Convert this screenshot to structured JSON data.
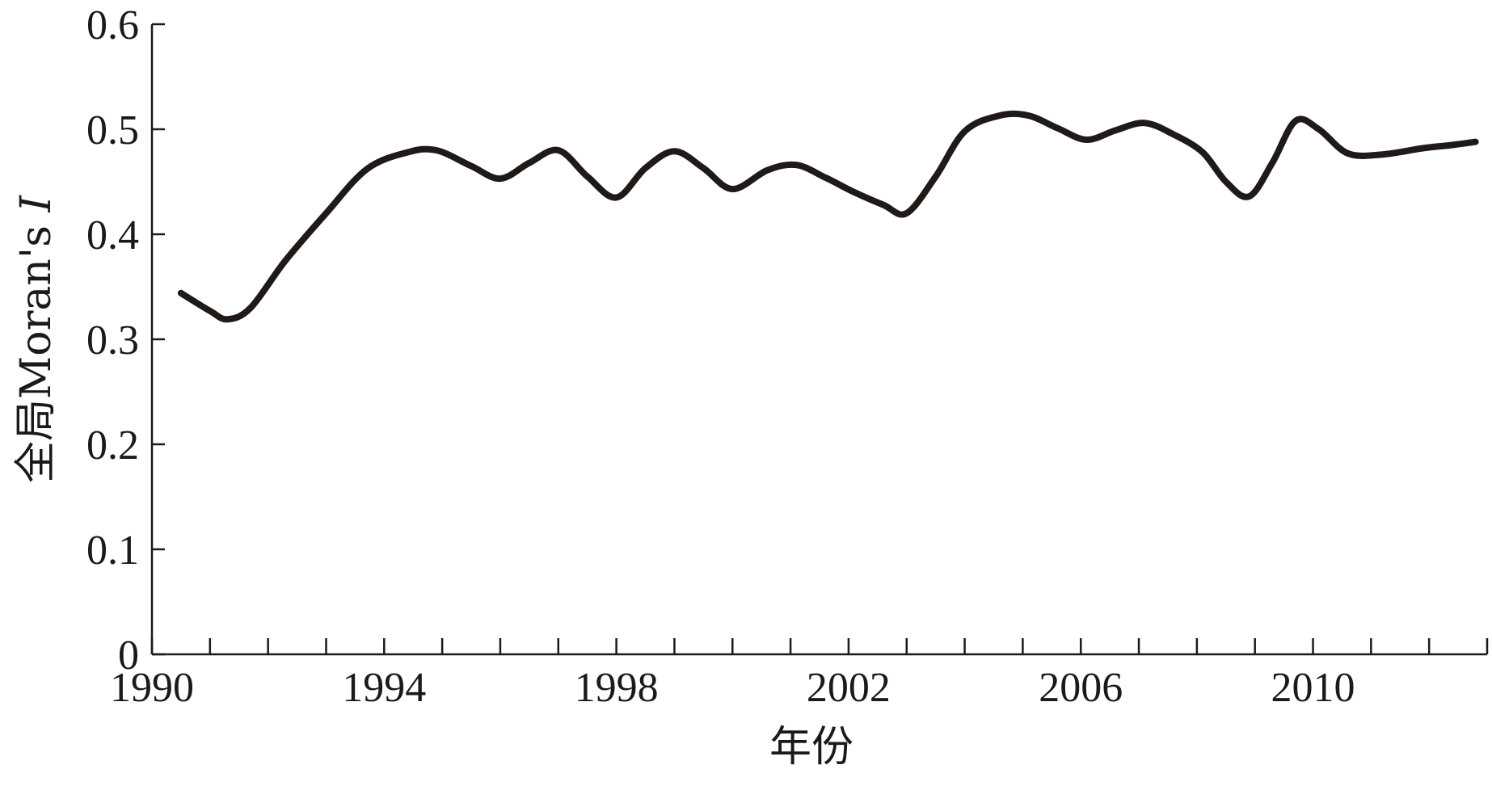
{
  "chart_data": {
    "type": "line",
    "title": "",
    "xlabel": "年份",
    "ylabel": "全局Moran's I",
    "ylabel_prefix": "全局Moran's ",
    "ylabel_italic": "I",
    "xlim": [
      1990,
      2013
    ],
    "ylim": [
      0,
      0.6
    ],
    "x_tick_labels": [
      "1990",
      "1994",
      "1998",
      "2002",
      "2006",
      "2010"
    ],
    "x_tick_label_values": [
      1990,
      1994,
      1998,
      2002,
      2006,
      2010
    ],
    "x_minor_tick_values": [
      1990,
      1991,
      1992,
      1993,
      1994,
      1995,
      1996,
      1997,
      1998,
      1999,
      2000,
      2001,
      2002,
      2003,
      2004,
      2005,
      2006,
      2007,
      2008,
      2009,
      2010,
      2011,
      2012,
      2013
    ],
    "y_tick_labels": [
      "0",
      "0.1",
      "0.2",
      "0.3",
      "0.4",
      "0.5",
      "0.6"
    ],
    "y_tick_values": [
      0,
      0.1,
      0.2,
      0.3,
      0.4,
      0.5,
      0.6
    ],
    "grid": false,
    "legend": "none",
    "line_color": "#1f1a17",
    "series": [
      {
        "x": [
          1990.5,
          1991.0,
          1991.3,
          1991.7,
          1992.3,
          1993.0,
          1993.7,
          1994.4,
          1994.9,
          1995.5,
          1996.0,
          1996.5,
          1997.0,
          1997.5,
          1998.0,
          1998.5,
          1999.0,
          1999.5,
          2000.0,
          2000.6,
          2001.1,
          2001.6,
          2002.1,
          2002.6,
          2003.0,
          2003.5,
          2004.0,
          2004.6,
          2005.1,
          2005.6,
          2006.1,
          2006.6,
          2007.1,
          2007.6,
          2008.1,
          2008.5,
          2008.9,
          2009.3,
          2009.7,
          2010.1,
          2010.6,
          2011.2,
          2011.9,
          2012.4,
          2012.8
        ],
        "values": [
          0.344,
          0.327,
          0.319,
          0.33,
          0.375,
          0.42,
          0.462,
          0.478,
          0.48,
          0.465,
          0.453,
          0.468,
          0.48,
          0.455,
          0.435,
          0.463,
          0.479,
          0.463,
          0.443,
          0.461,
          0.466,
          0.454,
          0.44,
          0.428,
          0.42,
          0.455,
          0.498,
          0.513,
          0.513,
          0.501,
          0.49,
          0.499,
          0.506,
          0.495,
          0.478,
          0.45,
          0.436,
          0.468,
          0.508,
          0.5,
          0.477,
          0.476,
          0.482,
          0.485,
          0.488
        ]
      }
    ]
  }
}
